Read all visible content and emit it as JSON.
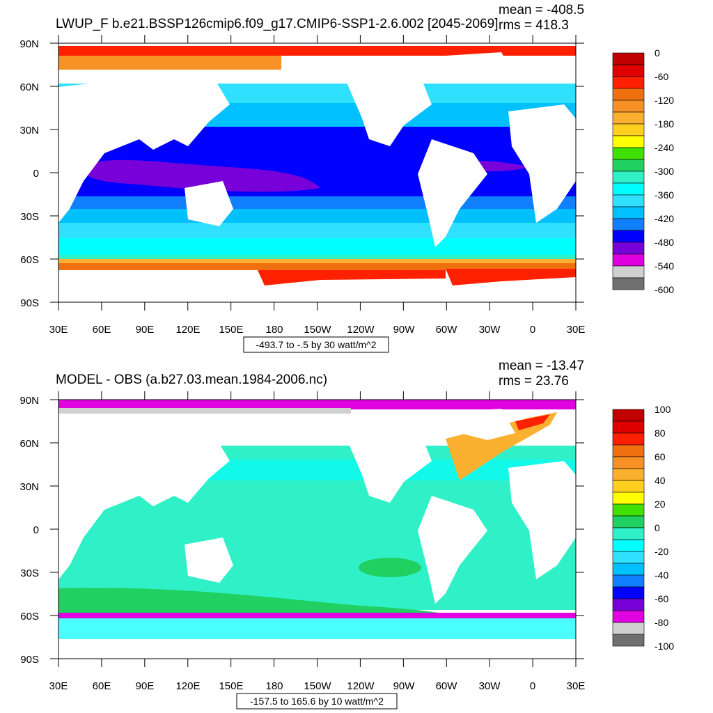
{
  "panels": [
    {
      "title": "LWUP_F b.e21.BSSP126cmip6.f09_g17.CMIP6-SSP1-2.6.002 [2045-2069]",
      "mean_text": "mean = -408.5",
      "rms_text": "rms = 418.3",
      "contour_info": "-493.7 to -.5 by 30 watt/m^2",
      "lat_labels": [
        "90N",
        "60N",
        "30N",
        "0",
        "30S",
        "60S",
        "90S"
      ],
      "lon_labels": [
        "30E",
        "60E",
        "90E",
        "120E",
        "150E",
        "180",
        "150W",
        "120W",
        "90W",
        "60W",
        "30W",
        "0",
        "30E"
      ],
      "colorbar": {
        "labels": [
          "0",
          "-60",
          "-120",
          "-180",
          "-240",
          "-300",
          "-360",
          "-420",
          "-480",
          "-540",
          "-600"
        ],
        "colors": [
          "#c00000",
          "#e00000",
          "#ff2000",
          "#f07010",
          "#f79025",
          "#fbb030",
          "#ffd020",
          "#ffff00",
          "#40e000",
          "#20d060",
          "#30f0c8",
          "#00ffff",
          "#30e0ff",
          "#00c0ff",
          "#1080ff",
          "#0000ff",
          "#7800d8",
          "#e000e0",
          "#d0d0d0",
          "#707070"
        ]
      }
    },
    {
      "title": "MODEL - OBS (a.b27.03.mean.1984-2006.nc)",
      "mean_text": "mean = -13.47",
      "rms_text": "rms = 23.76",
      "contour_info": "-157.5 to 165.6 by 10 watt/m^2",
      "lat_labels": [
        "90N",
        "60N",
        "30N",
        "0",
        "30S",
        "60S",
        "90S"
      ],
      "lon_labels": [
        "30E",
        "60E",
        "90E",
        "120E",
        "150E",
        "180",
        "150W",
        "120W",
        "90W",
        "60W",
        "30W",
        "0",
        "30E"
      ],
      "colorbar": {
        "labels": [
          "100",
          "80",
          "60",
          "40",
          "20",
          "0",
          "-20",
          "-40",
          "-60",
          "-80",
          "-100"
        ],
        "colors": [
          "#c00000",
          "#e00000",
          "#ff2000",
          "#f07010",
          "#f79025",
          "#fbb030",
          "#ffd020",
          "#ffff00",
          "#40e000",
          "#20d060",
          "#30f0c8",
          "#00ffff",
          "#30e0ff",
          "#00c0ff",
          "#1080ff",
          "#0000ff",
          "#7800d8",
          "#e000e0",
          "#d0d0d0",
          "#707070"
        ]
      }
    }
  ]
}
